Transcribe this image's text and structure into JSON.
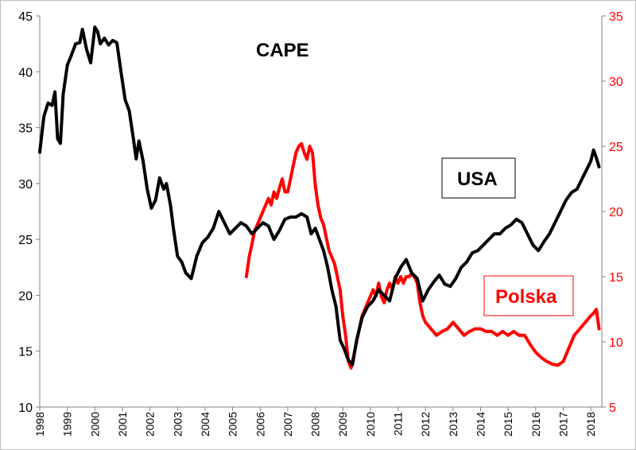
{
  "chart_data": {
    "type": "line",
    "title": "CAPE",
    "x_range": [
      1998.0,
      2018.4
    ],
    "y_left_range": [
      10,
      45
    ],
    "y_right_range": [
      5,
      35
    ],
    "y_left_ticks": [
      10,
      15,
      20,
      25,
      30,
      35,
      40,
      45
    ],
    "y_right_ticks": [
      5,
      10,
      15,
      20,
      25,
      30,
      35
    ],
    "x_ticks": [
      "1998",
      "1999",
      "2000",
      "2001",
      "2002",
      "2003",
      "2004",
      "2005",
      "2006",
      "2007",
      "2008",
      "2009",
      "2010",
      "2011",
      "2012",
      "2013",
      "2014",
      "2015",
      "2016",
      "2017",
      "2018"
    ],
    "grid": false,
    "legend": "none",
    "annotations": [
      {
        "text": "USA",
        "color": "#000000",
        "boxed": true
      },
      {
        "text": "Polska",
        "color": "#ff0000",
        "boxed": true
      }
    ],
    "series": [
      {
        "name": "USA",
        "axis": "left",
        "color": "#000000",
        "x": [
          1998.0,
          1998.15,
          1998.3,
          1998.45,
          1998.55,
          1998.65,
          1998.75,
          1998.85,
          1999.0,
          1999.15,
          1999.3,
          1999.45,
          1999.55,
          1999.7,
          1999.85,
          2000.0,
          2000.1,
          2000.2,
          2000.35,
          2000.5,
          2000.65,
          2000.8,
          2000.95,
          2001.1,
          2001.25,
          2001.4,
          2001.5,
          2001.6,
          2001.75,
          2001.9,
          2002.05,
          2002.2,
          2002.35,
          2002.5,
          2002.6,
          2002.75,
          2002.85,
          2003.0,
          2003.15,
          2003.3,
          2003.5,
          2003.7,
          2003.9,
          2004.1,
          2004.3,
          2004.5,
          2004.7,
          2004.9,
          2005.1,
          2005.3,
          2005.5,
          2005.7,
          2005.9,
          2006.1,
          2006.3,
          2006.5,
          2006.7,
          2006.9,
          2007.1,
          2007.3,
          2007.5,
          2007.7,
          2007.85,
          2008.0,
          2008.15,
          2008.3,
          2008.45,
          2008.6,
          2008.75,
          2008.9,
          2009.05,
          2009.2,
          2009.35,
          2009.5,
          2009.7,
          2009.9,
          2010.1,
          2010.3,
          2010.5,
          2010.7,
          2010.9,
          2011.1,
          2011.3,
          2011.5,
          2011.7,
          2011.9,
          2012.1,
          2012.3,
          2012.5,
          2012.7,
          2012.9,
          2013.1,
          2013.3,
          2013.5,
          2013.7,
          2013.9,
          2014.1,
          2014.3,
          2014.5,
          2014.7,
          2014.9,
          2015.1,
          2015.3,
          2015.5,
          2015.7,
          2015.9,
          2016.1,
          2016.3,
          2016.5,
          2016.7,
          2016.9,
          2017.1,
          2017.3,
          2017.5,
          2017.7,
          2017.9,
          2018.0,
          2018.1,
          2018.2,
          2018.3
        ],
        "values": [
          32.8,
          36.0,
          37.2,
          37.0,
          38.2,
          34.0,
          33.6,
          38.0,
          40.6,
          41.5,
          42.5,
          42.6,
          43.8,
          42.0,
          40.8,
          44.0,
          43.6,
          42.5,
          43.0,
          42.4,
          42.8,
          42.6,
          40.0,
          37.5,
          36.5,
          34.0,
          32.2,
          33.8,
          32.0,
          29.5,
          27.8,
          28.5,
          30.5,
          29.5,
          30.0,
          28.0,
          26.0,
          23.5,
          23.0,
          22.0,
          21.5,
          23.5,
          24.7,
          25.2,
          26.0,
          27.5,
          26.5,
          25.5,
          26.0,
          26.5,
          26.2,
          25.5,
          26.0,
          26.5,
          26.2,
          25.0,
          25.8,
          26.8,
          27.0,
          27.0,
          27.3,
          27.0,
          25.5,
          26.0,
          25.0,
          24.0,
          22.5,
          20.5,
          19.0,
          16.0,
          15.2,
          14.2,
          13.8,
          16.0,
          18.0,
          19.0,
          19.5,
          20.5,
          20.0,
          19.5,
          21.5,
          22.5,
          23.2,
          22.0,
          21.5,
          19.5,
          20.5,
          21.2,
          21.8,
          21.0,
          20.8,
          21.5,
          22.5,
          23.0,
          23.8,
          24.0,
          24.5,
          25.0,
          25.5,
          25.5,
          26.0,
          26.3,
          26.8,
          26.5,
          25.5,
          24.5,
          24.0,
          24.8,
          25.5,
          26.5,
          27.5,
          28.5,
          29.2,
          29.5,
          30.5,
          31.5,
          32.0,
          33.0,
          32.3,
          31.5
        ]
      },
      {
        "name": "Polska",
        "axis": "right",
        "color": "#ff0000",
        "x": [
          2005.5,
          2005.6,
          2005.7,
          2005.8,
          2005.9,
          2006.0,
          2006.1,
          2006.2,
          2006.3,
          2006.4,
          2006.5,
          2006.6,
          2006.7,
          2006.8,
          2006.9,
          2007.0,
          2007.1,
          2007.2,
          2007.3,
          2007.4,
          2007.5,
          2007.6,
          2007.7,
          2007.8,
          2007.9,
          2008.0,
          2008.1,
          2008.2,
          2008.3,
          2008.4,
          2008.5,
          2008.6,
          2008.7,
          2008.8,
          2008.9,
          2009.0,
          2009.1,
          2009.2,
          2009.3,
          2009.4,
          2009.5,
          2009.6,
          2009.7,
          2009.8,
          2009.9,
          2010.0,
          2010.1,
          2010.2,
          2010.3,
          2010.4,
          2010.5,
          2010.6,
          2010.7,
          2010.8,
          2010.9,
          2011.0,
          2011.1,
          2011.2,
          2011.3,
          2011.4,
          2011.5,
          2011.6,
          2011.7,
          2011.8,
          2011.9,
          2012.0,
          2012.2,
          2012.4,
          2012.6,
          2012.8,
          2013.0,
          2013.2,
          2013.4,
          2013.6,
          2013.8,
          2014.0,
          2014.2,
          2014.4,
          2014.6,
          2014.8,
          2015.0,
          2015.2,
          2015.4,
          2015.6,
          2015.8,
          2016.0,
          2016.2,
          2016.4,
          2016.6,
          2016.8,
          2017.0,
          2017.2,
          2017.4,
          2017.6,
          2017.8,
          2018.0,
          2018.1,
          2018.2,
          2018.3
        ],
        "values": [
          15.0,
          16.5,
          17.5,
          18.5,
          19.0,
          19.5,
          20.0,
          20.5,
          21.0,
          20.5,
          21.5,
          21.0,
          21.8,
          22.5,
          21.5,
          21.5,
          22.5,
          23.5,
          24.5,
          25.0,
          25.2,
          24.5,
          24.0,
          25.0,
          24.5,
          22.0,
          20.5,
          19.5,
          19.0,
          18.0,
          17.0,
          16.5,
          16.0,
          15.0,
          14.0,
          12.0,
          10.5,
          8.5,
          8.0,
          9.0,
          10.0,
          11.0,
          12.0,
          12.5,
          13.0,
          13.5,
          14.0,
          13.5,
          14.5,
          13.5,
          13.0,
          14.0,
          14.5,
          14.0,
          15.0,
          14.5,
          15.0,
          14.5,
          15.0,
          15.0,
          15.2,
          15.0,
          14.5,
          13.0,
          12.0,
          11.5,
          11.0,
          10.5,
          10.8,
          11.0,
          11.5,
          11.0,
          10.5,
          10.8,
          11.0,
          11.0,
          10.8,
          10.8,
          10.5,
          10.8,
          10.5,
          10.8,
          10.5,
          10.5,
          9.8,
          9.2,
          8.8,
          8.5,
          8.3,
          8.2,
          8.5,
          9.5,
          10.5,
          11.0,
          11.5,
          12.0,
          12.2,
          12.5,
          11.0
        ]
      }
    ]
  }
}
